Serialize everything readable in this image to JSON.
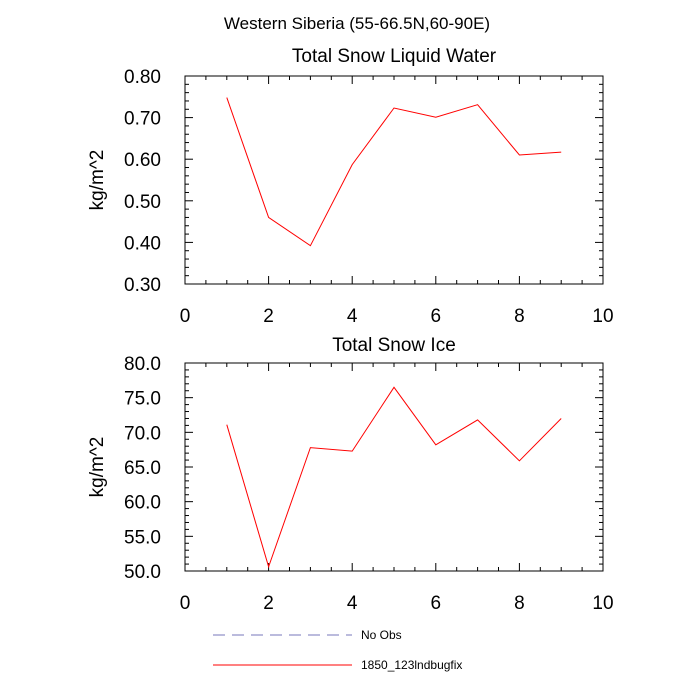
{
  "figure_title": "Western Siberia (55-66.5N,60-90E)",
  "chart_data": [
    {
      "type": "line",
      "title": "Total Snow Liquid Water",
      "xlabel": "",
      "ylabel": "kg/m^2",
      "xlim": [
        0,
        10
      ],
      "ylim": [
        0.3,
        0.8
      ],
      "x_ticks": [
        "0",
        "2",
        "4",
        "6",
        "8",
        "10"
      ],
      "y_ticks": [
        "0.30",
        "0.40",
        "0.50",
        "0.60",
        "0.70",
        "0.80"
      ],
      "x_tick_values": [
        0,
        2,
        4,
        6,
        8,
        10
      ],
      "y_tick_values": [
        0.3,
        0.4,
        0.5,
        0.6,
        0.7,
        0.8
      ],
      "series": [
        {
          "name": "1850_123lndbugfix",
          "color": "#ff0000",
          "x": [
            1,
            2,
            3,
            4,
            5,
            6,
            7,
            8,
            9
          ],
          "values": [
            0.748,
            0.46,
            0.392,
            0.587,
            0.723,
            0.701,
            0.731,
            0.61,
            0.617
          ]
        }
      ]
    },
    {
      "type": "line",
      "title": "Total Snow Ice",
      "xlabel": "",
      "ylabel": "kg/m^2",
      "xlim": [
        0,
        10
      ],
      "ylim": [
        50,
        80
      ],
      "x_ticks": [
        "0",
        "2",
        "4",
        "6",
        "8",
        "10"
      ],
      "y_ticks": [
        "50.0",
        "55.0",
        "60.0",
        "65.0",
        "70.0",
        "75.0",
        "80.0"
      ],
      "x_tick_values": [
        0,
        2,
        4,
        6,
        8,
        10
      ],
      "y_tick_values": [
        50,
        55,
        60,
        65,
        70,
        75,
        80
      ],
      "series": [
        {
          "name": "1850_123lndbugfix",
          "color": "#ff0000",
          "x": [
            1,
            2,
            3,
            4,
            5,
            6,
            7,
            8,
            9
          ],
          "values": [
            71.1,
            50.6,
            67.8,
            67.3,
            76.5,
            68.2,
            71.8,
            65.9,
            72.0
          ]
        }
      ]
    }
  ],
  "legend": [
    {
      "label": "No Obs",
      "color": "#7777bb",
      "style": "dashed"
    },
    {
      "label": "1850_123lndbugfix",
      "color": "#ff0000",
      "style": "solid"
    }
  ]
}
